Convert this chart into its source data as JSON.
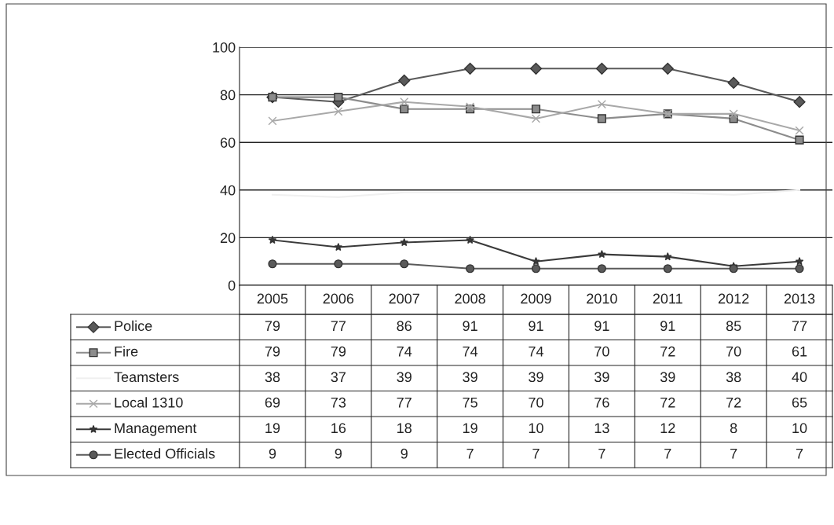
{
  "chart_data": {
    "type": "line",
    "categories": [
      "2005",
      "2006",
      "2007",
      "2008",
      "2009",
      "2010",
      "2011",
      "2012",
      "2013"
    ],
    "series": [
      {
        "name": "Police",
        "color": "#5a5a5a",
        "marker": "diamond",
        "values": [
          79,
          77,
          86,
          91,
          91,
          91,
          91,
          85,
          77
        ]
      },
      {
        "name": "Fire",
        "color": "#8c8c8c",
        "marker": "square",
        "values": [
          79,
          79,
          74,
          74,
          74,
          70,
          72,
          70,
          61
        ]
      },
      {
        "name": "Teamsters",
        "color": "#f0f0f0",
        "marker": "none",
        "values": [
          38,
          37,
          39,
          39,
          39,
          39,
          39,
          38,
          40
        ]
      },
      {
        "name": "Local 1310",
        "color": "#a8a8a8",
        "marker": "cross",
        "values": [
          69,
          73,
          77,
          75,
          70,
          76,
          72,
          72,
          65
        ]
      },
      {
        "name": "Management",
        "color": "#3a3a3a",
        "marker": "star",
        "values": [
          19,
          16,
          18,
          19,
          10,
          13,
          12,
          8,
          10
        ]
      },
      {
        "name": "Elected Officials",
        "color": "#5a5a5a",
        "marker": "circle",
        "values": [
          9,
          9,
          9,
          7,
          7,
          7,
          7,
          7,
          7
        ]
      }
    ],
    "ylim": [
      0,
      100
    ],
    "yticks": [
      0,
      20,
      40,
      60,
      80,
      100
    ],
    "grid": "y",
    "legend": "bottom left",
    "data_labels": true
  }
}
